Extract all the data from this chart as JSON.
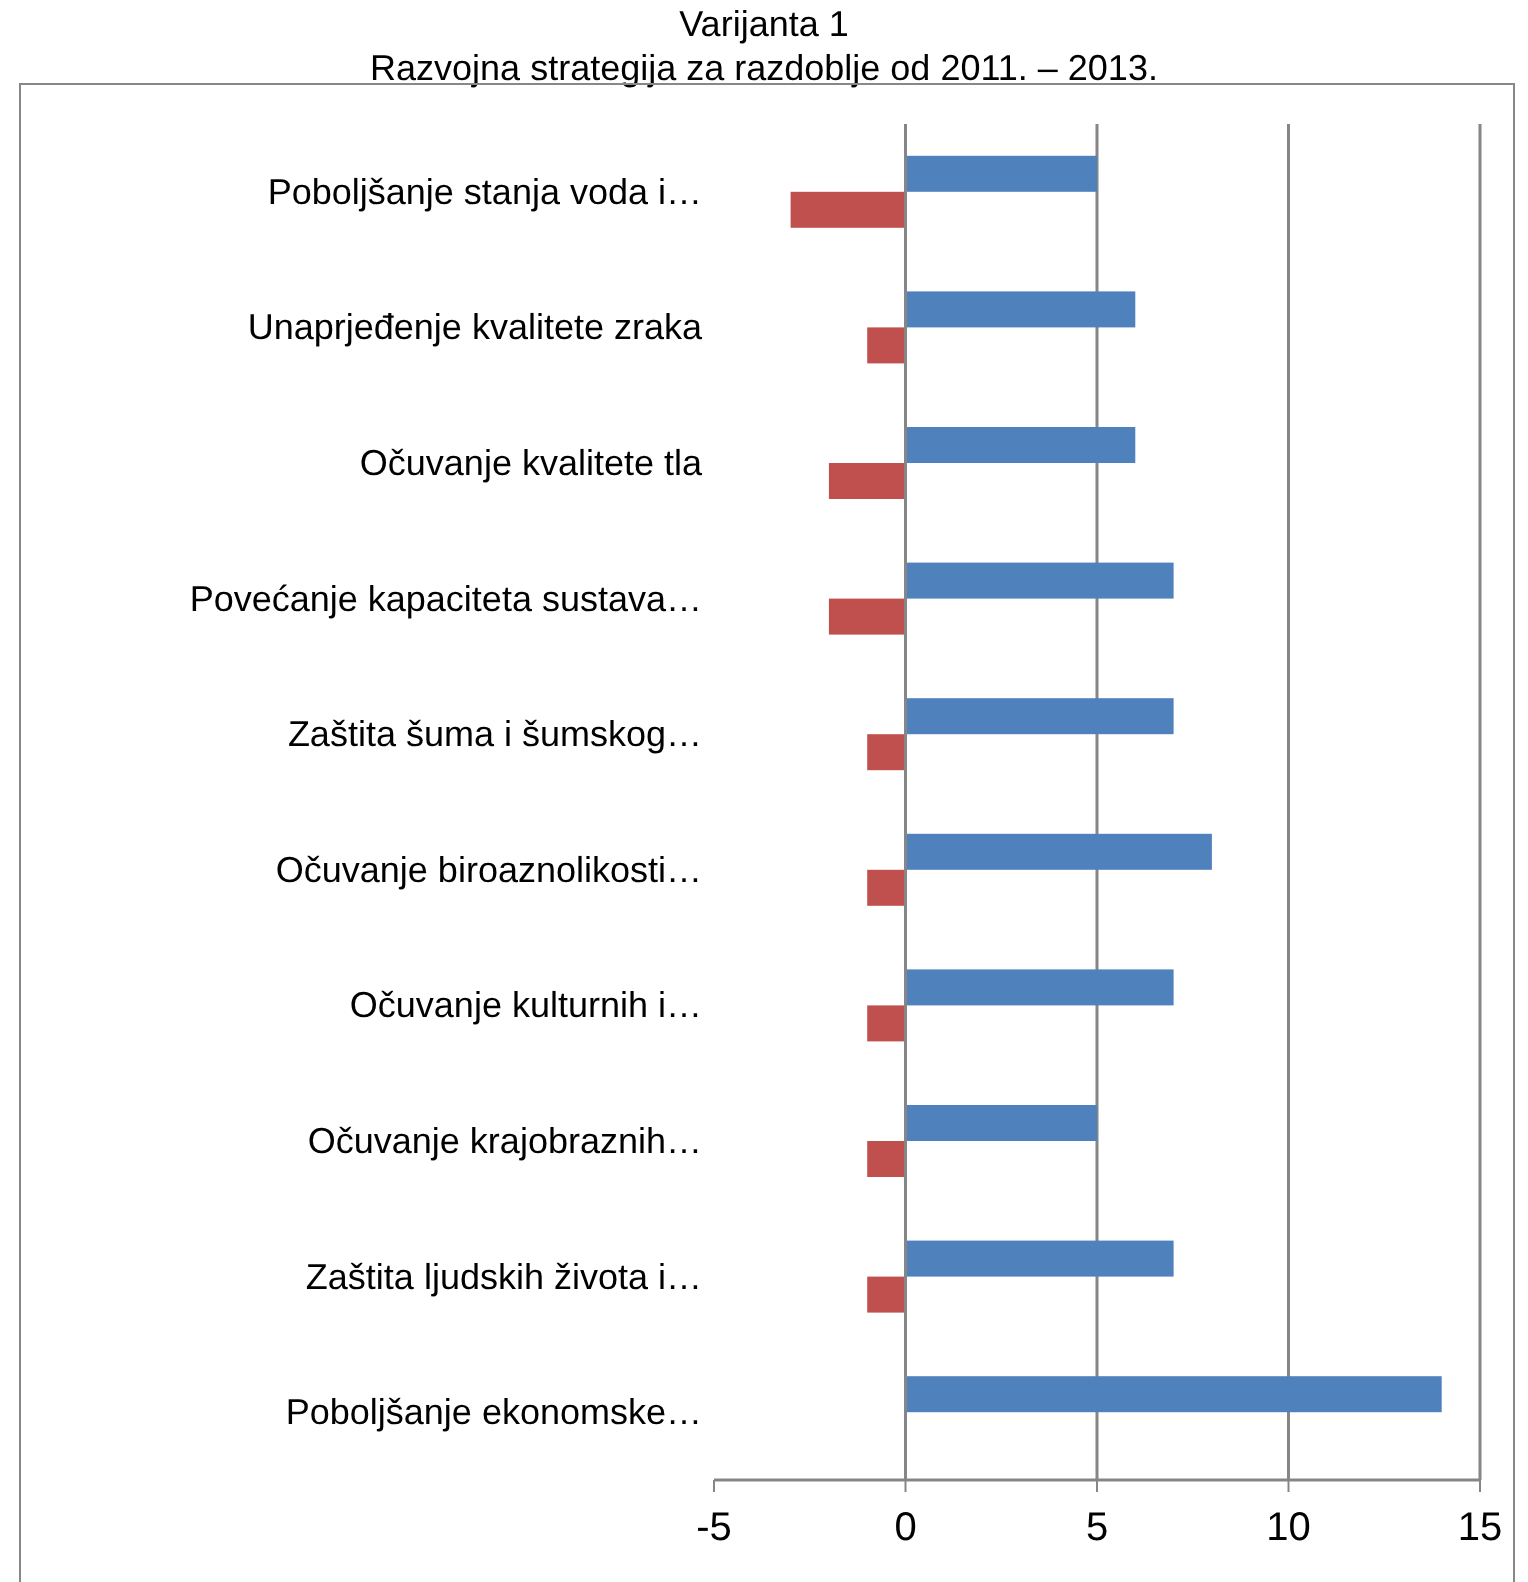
{
  "chart_data": {
    "type": "bar",
    "orientation": "horizontal",
    "title": "Varijanta 1",
    "subtitle": "Razvojna strategija za razdoblje od 2011. – 2013.",
    "categories": [
      "Poboljšanje stanja voda i…",
      "Unaprjeđenje kvalitete zraka",
      "Očuvanje kvalitete tla",
      "Povećanje kapaciteta sustava…",
      "Zaštita šuma i šumskog…",
      "Očuvanje biroaznolikosti…",
      "Očuvanje kulturnih i…",
      "Očuvanje krajobraznih…",
      "Zaštita ljudskih života i…",
      "Poboljšanje ekonomske…"
    ],
    "series": [
      {
        "color": "#4f81bd",
        "values": [
          5,
          6,
          6,
          7,
          7,
          8,
          7,
          5,
          7,
          14
        ]
      },
      {
        "color": "#c0504d",
        "values": [
          -3,
          -1,
          -2,
          -2,
          -1,
          -1,
          -1,
          -1,
          -1,
          null
        ]
      }
    ],
    "xlim": [
      -5,
      15
    ],
    "xticks": [
      -5,
      0,
      5,
      10,
      15
    ],
    "grid": "x"
  }
}
